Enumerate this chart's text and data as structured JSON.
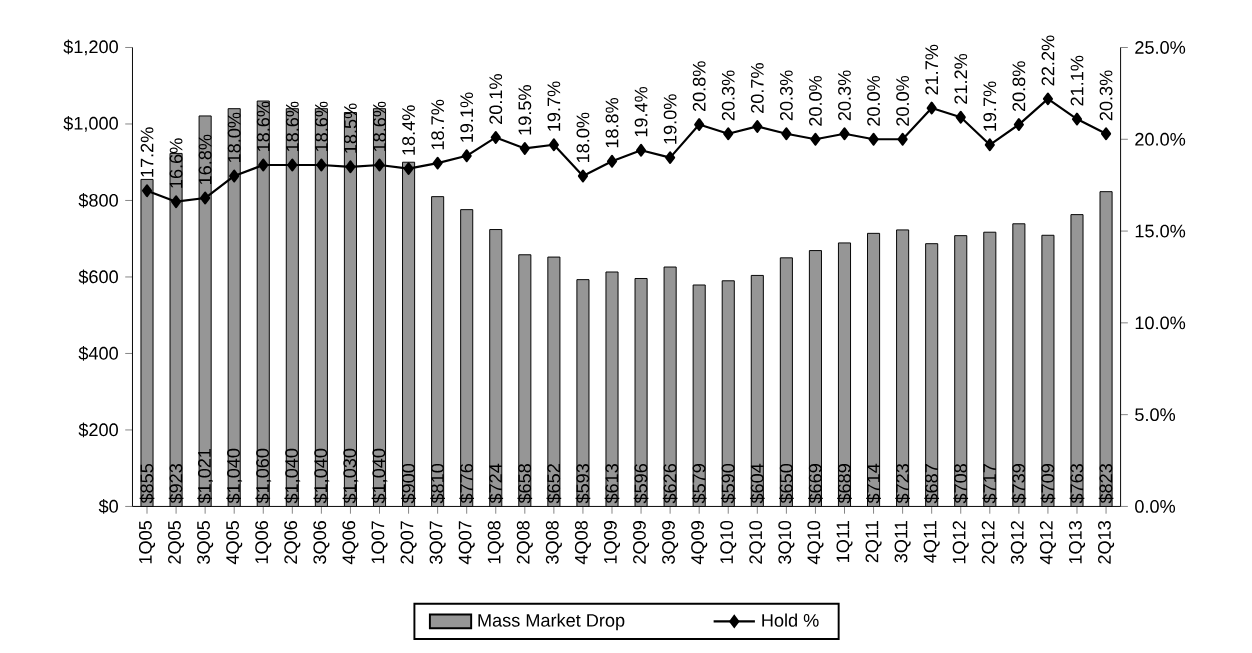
{
  "chart_data": {
    "type": "bar",
    "categories": [
      "1Q05",
      "2Q05",
      "3Q05",
      "4Q05",
      "1Q06",
      "2Q06",
      "3Q06",
      "4Q06",
      "1Q07",
      "2Q07",
      "3Q07",
      "4Q07",
      "1Q08",
      "2Q08",
      "3Q08",
      "4Q08",
      "1Q09",
      "2Q09",
      "3Q09",
      "4Q09",
      "1Q10",
      "2Q10",
      "3Q10",
      "4Q10",
      "1Q11",
      "2Q11",
      "3Q11",
      "4Q11",
      "1Q12",
      "2Q12",
      "3Q12",
      "4Q12",
      "1Q13",
      "2Q13"
    ],
    "series": [
      {
        "name": "Mass Market Drop",
        "color": "#969696",
        "values": [
          855,
          923,
          1021,
          1040,
          1060,
          1040,
          1040,
          1030,
          1040,
          900,
          810,
          776,
          724,
          658,
          652,
          593,
          613,
          596,
          626,
          579,
          590,
          604,
          650,
          669,
          689,
          714,
          723,
          687,
          708,
          717,
          739,
          709,
          763,
          823
        ],
        "value_labels": [
          "$855",
          "$923",
          "$1,021",
          "$1,040",
          "$1,060",
          "$1,040",
          "$1,040",
          "$1,030",
          "$1,040",
          "$900",
          "$810",
          "$776",
          "$724",
          "$658",
          "$652",
          "$593",
          "$613",
          "$596",
          "$626",
          "$579",
          "$590",
          "$604",
          "$650",
          "$669",
          "$689",
          "$714",
          "$723",
          "$687",
          "$708",
          "$717",
          "$739",
          "$709",
          "$763",
          "$823"
        ]
      },
      {
        "name": "Hold %",
        "type": "line",
        "axis": "y2",
        "color": "#000000",
        "values": [
          17.2,
          16.6,
          16.8,
          18.0,
          18.6,
          18.6,
          18.6,
          18.5,
          18.6,
          18.4,
          18.7,
          19.1,
          20.1,
          19.5,
          19.7,
          18.0,
          18.8,
          19.4,
          19.0,
          20.8,
          20.3,
          20.7,
          20.3,
          20.0,
          20.3,
          20.0,
          20.0,
          21.7,
          21.2,
          19.7,
          20.8,
          22.2,
          21.1,
          20.3
        ],
        "value_labels": [
          "17.2%",
          "16.6%",
          "16.8%",
          "18.0%",
          "18.6%",
          "18.6%",
          "18.6%",
          "18.5%",
          "18.6%",
          "18.4%",
          "18.7%",
          "19.1%",
          "20.1%",
          "19.5%",
          "19.7%",
          "18.0%",
          "18.8%",
          "19.4%",
          "19.0%",
          "20.8%",
          "20.3%",
          "20.7%",
          "20.3%",
          "20.0%",
          "20.3%",
          "20.0%",
          "20.0%",
          "21.7%",
          "21.2%",
          "19.7%",
          "20.8%",
          "22.2%",
          "21.1%",
          "20.3%"
        ]
      }
    ],
    "ylim": [
      0,
      1200
    ],
    "yticks": [
      {
        "value": 0,
        "label": "$0"
      },
      {
        "value": 200,
        "label": "$200"
      },
      {
        "value": 400,
        "label": "$400"
      },
      {
        "value": 600,
        "label": "$600"
      },
      {
        "value": 800,
        "label": "$800"
      },
      {
        "value": 1000,
        "label": "$1,000"
      },
      {
        "value": 1200,
        "label": "$1,200"
      }
    ],
    "y2lim": [
      0,
      25
    ],
    "y2ticks": [
      {
        "value": 0,
        "label": "0.0%"
      },
      {
        "value": 5,
        "label": "5.0%"
      },
      {
        "value": 10,
        "label": "10.0%"
      },
      {
        "value": 15,
        "label": "15.0%"
      },
      {
        "value": 20,
        "label": "20.0%"
      },
      {
        "value": 25,
        "label": "25.0%"
      }
    ],
    "marker": "diamond",
    "legend": "bottom"
  }
}
